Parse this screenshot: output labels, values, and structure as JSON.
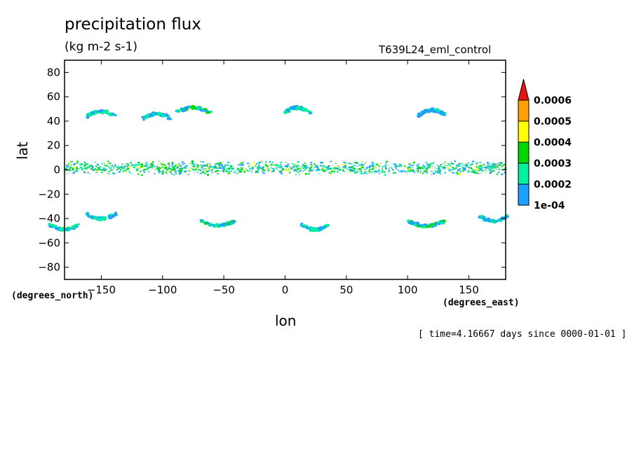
{
  "chart_data": {
    "type": "heatmap",
    "title": "precipitation flux",
    "units": "(kg m-2 s-1)",
    "run_label": "T639L24_eml_control",
    "xlabel": "lon",
    "ylabel": "lat",
    "x_units_label": "(degrees_east)",
    "y_units_label": "(degrees_north)",
    "time_label": "[ time=4.16667 days since 0000-01-01 ]",
    "xlim": [
      -180,
      180
    ],
    "ylim": [
      -90,
      90
    ],
    "x_ticks": [
      -150,
      -100,
      -50,
      0,
      50,
      100,
      150
    ],
    "y_ticks": [
      80,
      60,
      40,
      20,
      0,
      -20,
      -40,
      -60,
      -80
    ],
    "colorbar": {
      "levels": [
        "1e-04",
        "0.0002",
        "0.0003",
        "0.0004",
        "0.0005",
        "0.0006"
      ],
      "colors": [
        "#1ea0ff",
        "#00f0a0",
        "#00d700",
        "#ffff00",
        "#ffa000",
        "#e61414"
      ]
    },
    "features": [
      {
        "lon": -180,
        "lon_end": 180,
        "lat": 2,
        "lat_width": 6,
        "intensity": 2.2,
        "kind": "itcz-band"
      },
      {
        "lon": -150,
        "lat": 44,
        "intensity": 1.3,
        "kind": "storm"
      },
      {
        "lon": -105,
        "lat": 42,
        "intensity": 1.2,
        "kind": "storm"
      },
      {
        "lon": -75,
        "lat": 47,
        "intensity": 2.0,
        "kind": "storm"
      },
      {
        "lon": 10,
        "lat": 47,
        "intensity": 1.1,
        "kind": "storm"
      },
      {
        "lon": 120,
        "lat": 45,
        "intensity": 1.1,
        "kind": "storm"
      },
      {
        "lon": -150,
        "lat": -36,
        "intensity": 1.4,
        "kind": "storm"
      },
      {
        "lon": -55,
        "lat": -42,
        "intensity": 1.9,
        "kind": "storm"
      },
      {
        "lon": 25,
        "lat": -45,
        "intensity": 1.3,
        "kind": "storm"
      },
      {
        "lon": 115,
        "lat": -42,
        "intensity": 2.3,
        "kind": "storm"
      },
      {
        "lon": 170,
        "lat": -38,
        "intensity": 1.3,
        "kind": "storm"
      },
      {
        "lon": -180,
        "lat": -45,
        "intensity": 1.5,
        "kind": "storm"
      }
    ]
  }
}
